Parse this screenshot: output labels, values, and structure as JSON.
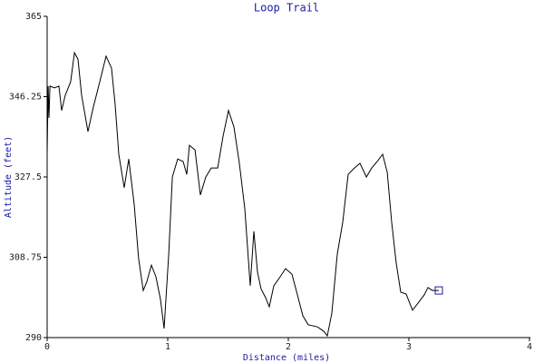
{
  "chart_data": {
    "type": "line",
    "title": "Loop Trail",
    "x_label": "Distance (miles)",
    "y_label": "Altitude (feet)",
    "xlim": [
      0,
      4
    ],
    "xticks": [
      0,
      1,
      2,
      3,
      4
    ],
    "ylim": [
      290,
      365
    ],
    "yticks": [
      290,
      308.75,
      327.5,
      346.25,
      365
    ],
    "series": [
      {
        "color": "#000000",
        "x": [
          0,
          0.008,
          0.015,
          0.023,
          0.06,
          0.098,
          0.12,
          0.15,
          0.195,
          0.226,
          0.256,
          0.286,
          0.338,
          0.383,
          0.436,
          0.489,
          0.534,
          0.564,
          0.594,
          0.639,
          0.677,
          0.722,
          0.759,
          0.797,
          0.827,
          0.865,
          0.902,
          0.94,
          0.97,
          1.008,
          1.038,
          1.083,
          1.128,
          1.158,
          1.18,
          1.226,
          1.271,
          1.316,
          1.361,
          1.414,
          1.459,
          1.504,
          1.549,
          1.594,
          1.639,
          1.684,
          1.714,
          1.744,
          1.774,
          1.812,
          1.842,
          1.88,
          1.932,
          1.977,
          2.03,
          2.075,
          2.12,
          2.165,
          2.241,
          2.293,
          2.323,
          2.361,
          2.406,
          2.451,
          2.496,
          2.541,
          2.594,
          2.647,
          2.692,
          2.737,
          2.782,
          2.82,
          2.857,
          2.895,
          2.932,
          2.977,
          3.03,
          3.083,
          3.128,
          3.158,
          3.195,
          3.248
        ],
        "values": [
          332.8,
          348.7,
          341.3,
          348.7,
          348.3,
          348.7,
          343.0,
          346.6,
          349.7,
          356.5,
          355.0,
          346.6,
          338.1,
          343.8,
          349.7,
          355.7,
          352.9,
          344.4,
          332.8,
          325.0,
          331.7,
          321.1,
          308.4,
          301.0,
          303.1,
          306.9,
          304.2,
          298.9,
          292.1,
          309.5,
          327.5,
          331.7,
          331.1,
          328.1,
          334.9,
          333.8,
          323.3,
          327.5,
          329.6,
          329.6,
          337.0,
          343.0,
          339.2,
          330.7,
          320.1,
          302.1,
          314.8,
          305.3,
          301.4,
          299.3,
          297.2,
          302.1,
          304.2,
          306.1,
          304.8,
          300.0,
          295.1,
          293.0,
          292.5,
          291.5,
          290.4,
          295.7,
          309.5,
          316.9,
          328.1,
          329.4,
          330.7,
          327.5,
          329.6,
          331.1,
          332.8,
          328.6,
          316.9,
          307.4,
          300.6,
          300.2,
          296.4,
          298.3,
          300.0,
          301.7,
          301.0,
          301.0
        ]
      }
    ],
    "end_marker_color": "#1a1aa6"
  }
}
